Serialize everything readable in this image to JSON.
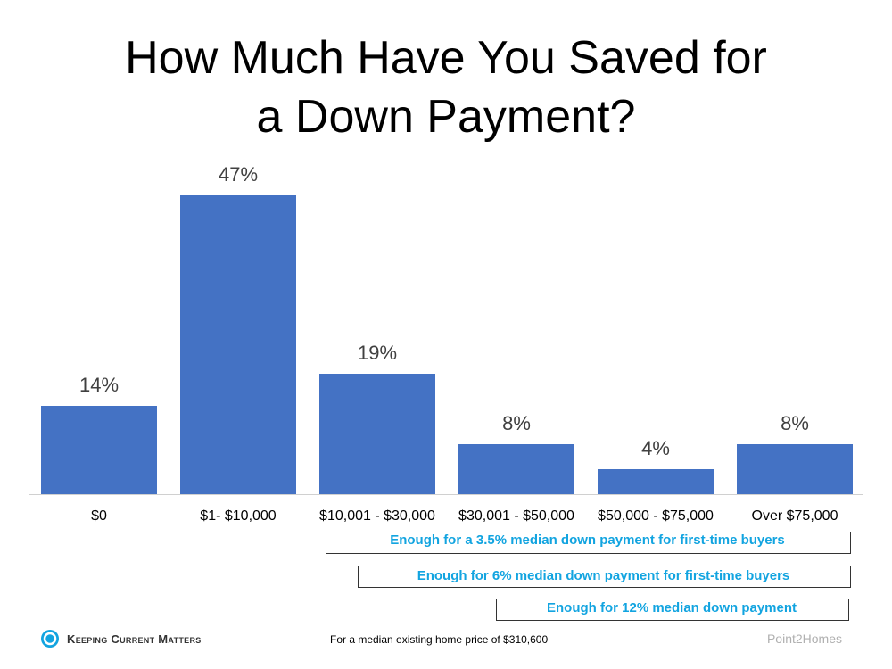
{
  "title_line1": "How Much Have You Saved for",
  "title_line2": "a Down Payment?",
  "chart_data": {
    "type": "bar",
    "title": "How Much Have You Saved for a Down Payment?",
    "categories": [
      "$0",
      "$1- $10,000",
      "$10,001 - $30,000",
      "$30,001 - $50,000",
      "$50,000 - $75,000",
      "Over $75,000"
    ],
    "values": [
      14,
      47,
      19,
      8,
      4,
      8
    ],
    "value_labels": [
      "14%",
      "47%",
      "19%",
      "8%",
      "4%",
      "8%"
    ],
    "xlabel": "",
    "ylabel": "",
    "ylim": [
      0,
      50
    ],
    "grid": false,
    "color": "#4472c4",
    "annotations": [
      {
        "text": "Enough for a 3.5% median down payment for first-time buyers",
        "spans": [
          "$10,001 - $30,000",
          "Over $75,000"
        ]
      },
      {
        "text": "Enough for 6% median down payment for first-time buyers",
        "spans": [
          "$10,001 - $30,000",
          "Over $75,000"
        ]
      },
      {
        "text": "Enough for 12% median down payment",
        "spans": [
          "$30,001 - $50,000",
          "Over $75,000"
        ]
      }
    ]
  },
  "footer": {
    "logo_text": "Keeping Current Matters",
    "note": "For a median existing home price of $310,600",
    "source": "Point2Homes"
  },
  "colors": {
    "bar": "#4472c4",
    "annotation": "#12a4e0"
  }
}
